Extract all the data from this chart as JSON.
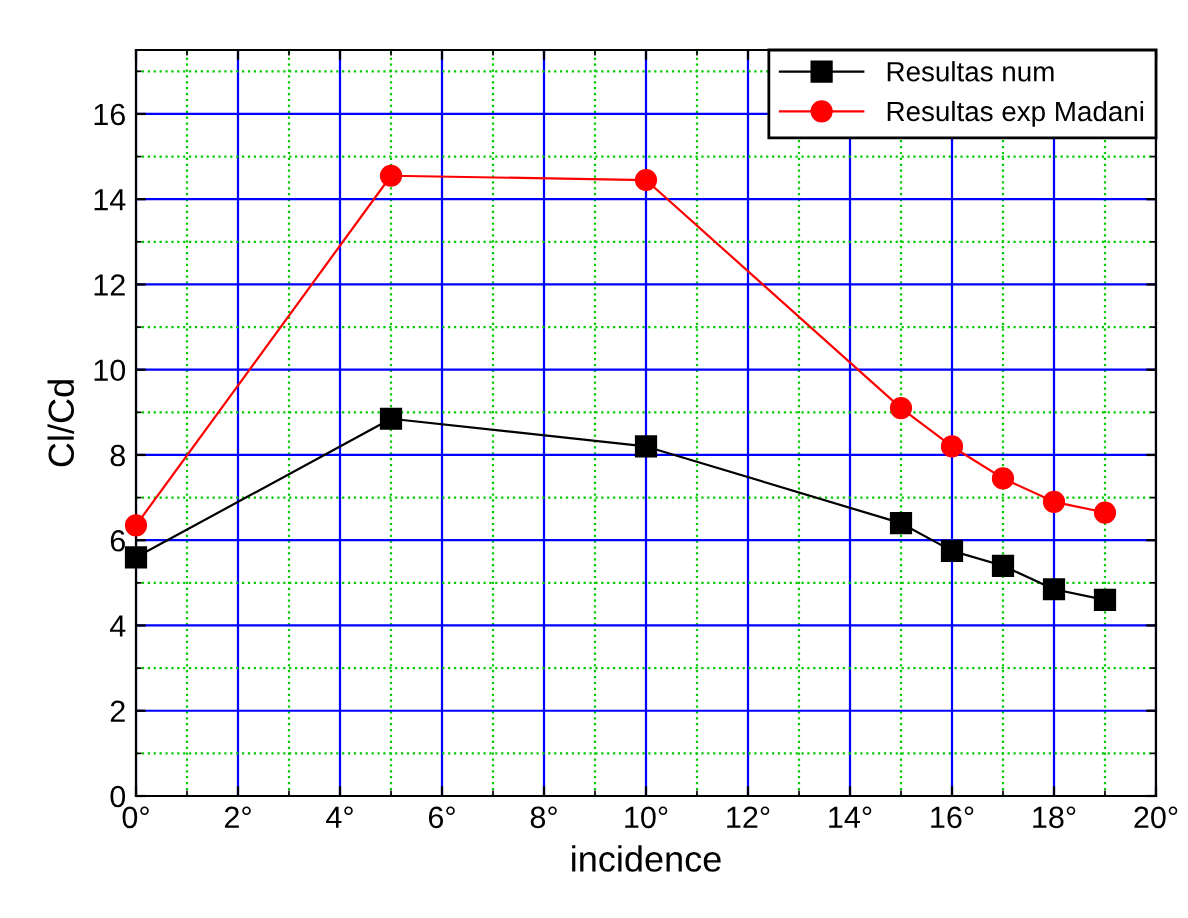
{
  "chart_data": {
    "type": "line",
    "xlabel": "incidence",
    "ylabel": "Cl/Cd",
    "xlim": [
      0,
      20
    ],
    "ylim": [
      0,
      17.5
    ],
    "xticks": [
      {
        "value": 0,
        "label": "0°"
      },
      {
        "value": 1,
        "label": null
      },
      {
        "value": 2,
        "label": "2°"
      },
      {
        "value": 3,
        "label": null
      },
      {
        "value": 4,
        "label": "4°"
      },
      {
        "value": 5,
        "label": null
      },
      {
        "value": 6,
        "label": "6°"
      },
      {
        "value": 7,
        "label": null
      },
      {
        "value": 8,
        "label": "8°"
      },
      {
        "value": 9,
        "label": null
      },
      {
        "value": 10,
        "label": "10°"
      },
      {
        "value": 11,
        "label": null
      },
      {
        "value": 12,
        "label": "12°"
      },
      {
        "value": 13,
        "label": null
      },
      {
        "value": 14,
        "label": "14°"
      },
      {
        "value": 15,
        "label": null
      },
      {
        "value": 16,
        "label": "16°"
      },
      {
        "value": 17,
        "label": null
      },
      {
        "value": 18,
        "label": "18°"
      },
      {
        "value": 19,
        "label": null
      },
      {
        "value": 20,
        "label": "20°"
      }
    ],
    "yticks": [
      0,
      {
        "value": 1,
        "label": null
      },
      2,
      {
        "value": 3,
        "label": null
      },
      4,
      {
        "value": 5,
        "label": null
      },
      6,
      {
        "value": 7,
        "label": null
      },
      8,
      {
        "value": 9,
        "label": null
      },
      10,
      {
        "value": 11,
        "label": null
      },
      12,
      {
        "value": 13,
        "label": null
      },
      14,
      {
        "value": 15,
        "label": null
      },
      16,
      {
        "value": 17,
        "label": null
      }
    ],
    "grid": true,
    "legend": "top right",
    "series": [
      {
        "name": "Resultas num",
        "color": "#000000",
        "marker": "square",
        "x": [
          0,
          5,
          10,
          15,
          16,
          17,
          18,
          19
        ],
        "values": [
          5.6,
          8.85,
          8.2,
          6.4,
          5.75,
          5.4,
          4.85,
          4.6
        ]
      },
      {
        "name": "Resultas exp Madani",
        "color": "#ff0000",
        "marker": "circle",
        "x": [
          0,
          5,
          10,
          15,
          16,
          17,
          18,
          19
        ],
        "values": [
          6.35,
          14.55,
          14.45,
          9.1,
          8.2,
          7.45,
          6.9,
          6.65
        ]
      }
    ]
  }
}
